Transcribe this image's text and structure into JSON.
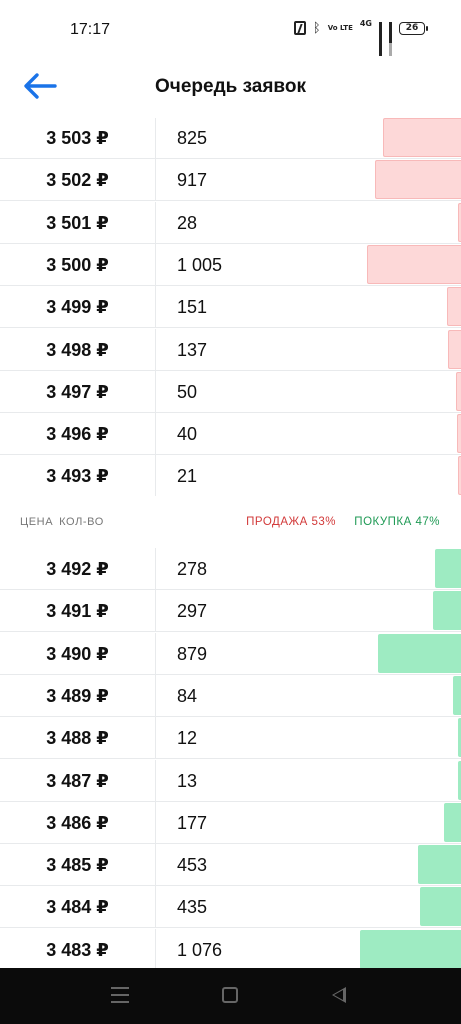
{
  "status_bar": {
    "time": "17:17",
    "network": "4G",
    "volte": "Vo LTE",
    "battery": "26"
  },
  "header": {
    "title": "Очередь заявок",
    "back_icon": "arrow-left-icon",
    "accent_color": "#1a73e8"
  },
  "asks": [
    {
      "price": "3 503 ₽",
      "qty": "825",
      "depth": 0.825
    },
    {
      "price": "3 502 ₽",
      "qty": "917",
      "depth": 0.917
    },
    {
      "price": "3 501 ₽",
      "qty": "28",
      "depth": 0.028
    },
    {
      "price": "3 500 ₽",
      "qty": "1 005",
      "depth": 1.005
    },
    {
      "price": "3 499 ₽",
      "qty": "151",
      "depth": 0.151
    },
    {
      "price": "3 498 ₽",
      "qty": "137",
      "depth": 0.137
    },
    {
      "price": "3 497 ₽",
      "qty": "50",
      "depth": 0.05
    },
    {
      "price": "3 496 ₽",
      "qty": "40",
      "depth": 0.04
    },
    {
      "price": "3 493 ₽",
      "qty": "21",
      "depth": 0.021
    }
  ],
  "summary": {
    "price_header": "ЦЕНА",
    "qty_header": "КОЛ-ВО",
    "sell_label": "ПРОДАЖА 53%",
    "buy_label": "ПОКУПКА 47%",
    "sell_color": "#d23a3a",
    "buy_color": "#1f9a55"
  },
  "bids": [
    {
      "price": "3 492 ₽",
      "qty": "278",
      "depth": 0.278
    },
    {
      "price": "3 491 ₽",
      "qty": "297",
      "depth": 0.297
    },
    {
      "price": "3 490 ₽",
      "qty": "879",
      "depth": 0.879
    },
    {
      "price": "3 489 ₽",
      "qty": "84",
      "depth": 0.084
    },
    {
      "price": "3 488 ₽",
      "qty": "12",
      "depth": 0.012
    },
    {
      "price": "3 487 ₽",
      "qty": "13",
      "depth": 0.013
    },
    {
      "price": "3 486 ₽",
      "qty": "177",
      "depth": 0.177
    },
    {
      "price": "3 485 ₽",
      "qty": "453",
      "depth": 0.453
    },
    {
      "price": "3 484 ₽",
      "qty": "435",
      "depth": 0.435
    },
    {
      "price": "3 483 ₽",
      "qty": "1 076",
      "depth": 1.076
    }
  ],
  "nav": {
    "menu_icon": "menu-icon",
    "home_icon": "home-icon",
    "back_icon": "back-triangle-icon"
  }
}
